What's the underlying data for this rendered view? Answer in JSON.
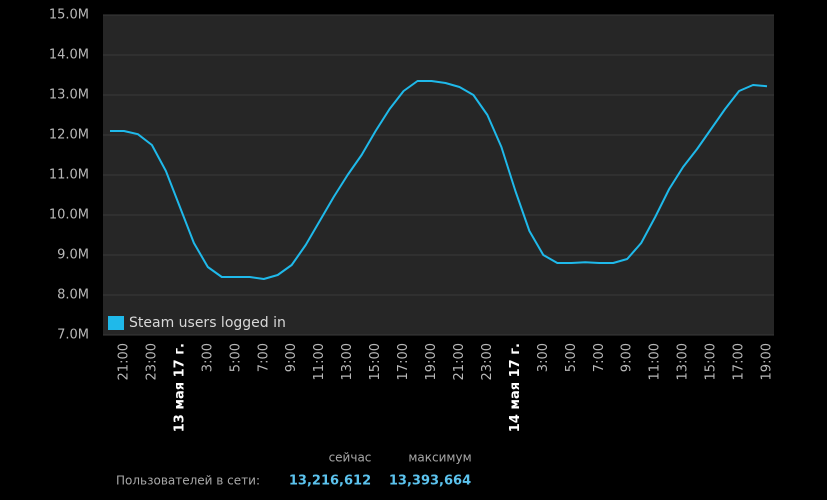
{
  "chart_data": {
    "type": "line",
    "categories": [
      null,
      "21:00",
      null,
      "23:00",
      null,
      "13 мая 17 г.",
      null,
      "3:00",
      null,
      "5:00",
      null,
      "7:00",
      null,
      "9:00",
      null,
      "11:00",
      null,
      "13:00",
      null,
      "15:00",
      null,
      "17:00",
      null,
      "19:00",
      null,
      "21:00",
      null,
      "23:00",
      null,
      "14 мая 17 г.",
      null,
      "3:00",
      null,
      "5:00",
      null,
      "7:00",
      null,
      "9:00",
      null,
      "11:00",
      null,
      "13:00",
      null,
      "15:00",
      null,
      "17:00",
      null,
      "19:00"
    ],
    "series": [
      {
        "name": "Steam users logged in",
        "color": "#1fb9ea",
        "values": [
          12100000,
          12100000,
          12020000,
          11750000,
          11100000,
          10200000,
          9300000,
          8700000,
          8450000,
          8450000,
          8450000,
          8400000,
          8500000,
          8750000,
          9250000,
          9850000,
          10450000,
          11000000,
          11500000,
          12100000,
          12650000,
          13100000,
          13350000,
          13350000,
          13300000,
          13200000,
          13000000,
          12500000,
          11700000,
          10600000,
          9600000,
          9000000,
          8800000,
          8800000,
          8820000,
          8800000,
          8800000,
          8900000,
          9300000,
          9950000,
          10650000,
          11200000,
          11650000,
          12150000,
          12650000,
          13100000,
          13250000,
          13220000
        ]
      }
    ],
    "ylim": [
      7000000,
      15000000
    ],
    "yticks": [
      {
        "value": 7000000,
        "label": "7.0M"
      },
      {
        "value": 8000000,
        "label": "8.0M"
      },
      {
        "value": 9000000,
        "label": "9.0M"
      },
      {
        "value": 10000000,
        "label": "10.0M"
      },
      {
        "value": 11000000,
        "label": "11.0M"
      },
      {
        "value": 12000000,
        "label": "12.0M"
      },
      {
        "value": 13000000,
        "label": "13.0M"
      },
      {
        "value": 14000000,
        "label": "14.0M"
      },
      {
        "value": 15000000,
        "label": "15.0M"
      }
    ],
    "grid": true,
    "legend": "lower left"
  },
  "footer": {
    "now_label": "сейчас",
    "max_label": "максимум",
    "users_label": "Пользователей в сети:",
    "now_value": "13,216,612",
    "max_value": "13,393,664"
  }
}
